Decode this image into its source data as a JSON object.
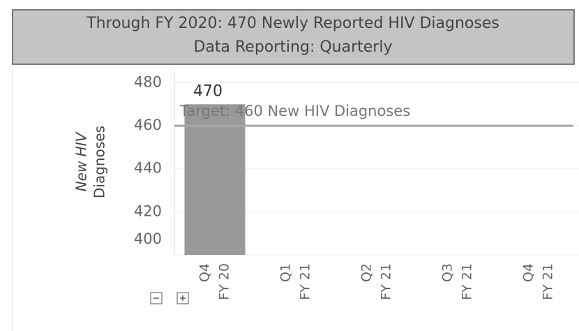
{
  "chart_data": {
    "type": "bar",
    "title": "Through FY 2020: 470 Newly Reported HIV Diagnoses",
    "subtitle": "Data Reporting: Quarterly",
    "ylabel": [
      "New HIV",
      "Diagnoses"
    ],
    "categories": [
      [
        "Q4",
        "FY 20"
      ],
      [
        "Q1",
        "FY 21"
      ],
      [
        "Q2",
        "FY 21"
      ],
      [
        "Q3",
        "FY 21"
      ],
      [
        "Q4",
        "FY 21"
      ]
    ],
    "values": [
      470,
      null,
      null,
      null,
      null
    ],
    "color": "#999999",
    "target": {
      "value": 460,
      "label": "Target: 460 New HIV Diagnoses",
      "color": "#a6a6a6"
    },
    "ylim": [
      400,
      486
    ],
    "yticks": [
      400,
      420,
      440,
      460,
      480
    ],
    "grid": true
  }
}
